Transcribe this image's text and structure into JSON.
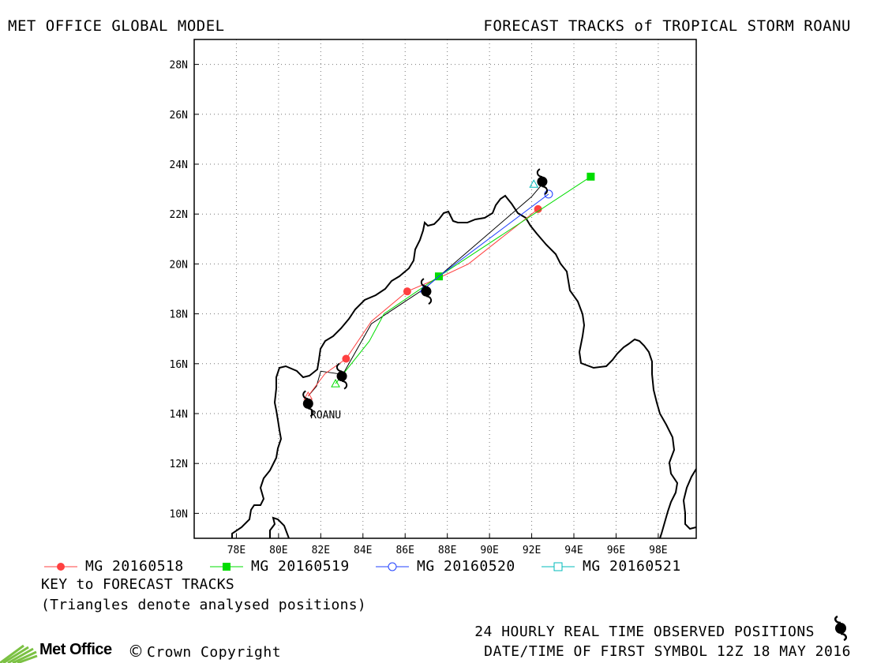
{
  "header": {
    "left_title": "MET OFFICE GLOBAL MODEL",
    "right_title": "FORECAST TRACKS of TROPICAL STORM ROANU"
  },
  "map": {
    "lon_range": [
      76.0,
      99.8
    ],
    "lat_range": [
      9.0,
      29.0
    ],
    "x_ticks": [
      "78E",
      "80E",
      "82E",
      "84E",
      "86E",
      "88E",
      "90E",
      "92E",
      "94E",
      "96E",
      "98E"
    ],
    "y_ticks": [
      "10N",
      "12N",
      "14N",
      "16N",
      "18N",
      "20N",
      "22N",
      "24N",
      "26N",
      "28N"
    ],
    "storm_label": "ROANU",
    "grid": "dotted"
  },
  "legend": [
    {
      "label": "MG 20160518",
      "color": "#ff4040",
      "marker": "filled-circle"
    },
    {
      "label": "MG 20160519",
      "color": "#00dd00",
      "marker": "filled-square"
    },
    {
      "label": "MG 20160520",
      "color": "#2040ff",
      "marker": "open-circle"
    },
    {
      "label": "MG 20160521",
      "color": "#00bbbb",
      "marker": "open-square"
    }
  ],
  "key": {
    "title": "KEY to FORECAST TRACKS",
    "note": "(Triangles denote analysed positions)"
  },
  "footer": {
    "observed_label": "24 HOURLY REAL TIME OBSERVED POSITIONS",
    "date_label": "DATE/TIME OF FIRST SYMBOL 12Z 18 MAY 2016",
    "brand": "Met Office",
    "copyright_symbol": "©",
    "copyright": "Crown Copyright"
  },
  "chart_data": {
    "type": "line",
    "xlabel": "",
    "ylabel": "",
    "xlim": [
      76.0,
      99.8
    ],
    "ylim": [
      9.0,
      29.0
    ],
    "observed_track": [
      {
        "lon": 81.4,
        "lat": 14.4
      },
      {
        "lon": 83.0,
        "lat": 15.5
      },
      {
        "lon": 87.0,
        "lat": 18.9
      },
      {
        "lon": 92.5,
        "lat": 23.3
      }
    ],
    "series": [
      {
        "name": "MG 20160518",
        "color": "#ff4040",
        "marker": "filled-circle",
        "analysed": {
          "lon": 81.4,
          "lat": 14.7
        },
        "points": [
          {
            "lon": 81.4,
            "lat": 14.7
          },
          {
            "lon": 82.2,
            "lat": 15.6
          },
          {
            "lon": 83.2,
            "lat": 16.2
          },
          {
            "lon": 84.4,
            "lat": 17.7
          },
          {
            "lon": 86.1,
            "lat": 18.9
          },
          {
            "lon": 87.5,
            "lat": 19.4
          },
          {
            "lon": 89.0,
            "lat": 20.0
          },
          {
            "lon": 92.3,
            "lat": 22.2
          }
        ],
        "markers": [
          {
            "lon": 83.2,
            "lat": 16.2
          },
          {
            "lon": 86.1,
            "lat": 18.9
          },
          {
            "lon": 92.3,
            "lat": 22.2
          }
        ]
      },
      {
        "name": "MG 20160519",
        "color": "#00dd00",
        "marker": "filled-square",
        "analysed": {
          "lon": 82.7,
          "lat": 15.2
        },
        "points": [
          {
            "lon": 82.7,
            "lat": 15.2
          },
          {
            "lon": 84.3,
            "lat": 16.9
          },
          {
            "lon": 85.0,
            "lat": 18.0
          },
          {
            "lon": 87.6,
            "lat": 19.5
          },
          {
            "lon": 94.8,
            "lat": 23.5
          }
        ],
        "markers": [
          {
            "lon": 87.6,
            "lat": 19.5
          },
          {
            "lon": 94.8,
            "lat": 23.5
          }
        ]
      },
      {
        "name": "MG 20160520",
        "color": "#2040ff",
        "marker": "open-circle",
        "analysed": {
          "lon": 86.9,
          "lat": 19.0
        },
        "points": [
          {
            "lon": 86.9,
            "lat": 19.0
          },
          {
            "lon": 87.6,
            "lat": 19.5
          },
          {
            "lon": 92.8,
            "lat": 22.8
          }
        ],
        "markers": [
          {
            "lon": 92.8,
            "lat": 22.8
          }
        ]
      },
      {
        "name": "MG 20160521",
        "color": "#00bbbb",
        "marker": "open-square",
        "analysed": {
          "lon": 92.1,
          "lat": 23.2
        },
        "points": [
          {
            "lon": 92.1,
            "lat": 23.2
          }
        ],
        "markers": []
      }
    ]
  }
}
